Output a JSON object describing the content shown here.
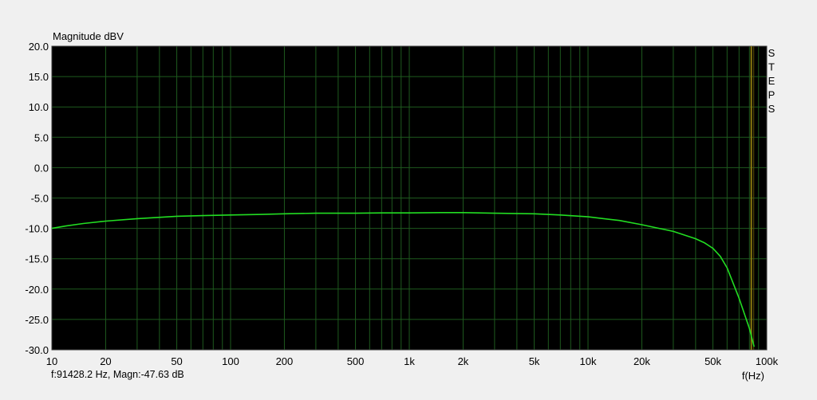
{
  "chart_data": {
    "type": "line",
    "title": "",
    "ylabel": "Magnitude dBV",
    "xlabel": "f(Hz)",
    "x_scale": "log",
    "xlim": [
      10,
      100000
    ],
    "ylim": [
      -30,
      20
    ],
    "grid": true,
    "y_ticks": [
      "20.0",
      "15.0",
      "10.0",
      "5.0",
      "0.0",
      "-5.0",
      "-10.0",
      "-15.0",
      "-20.0",
      "-25.0",
      "-30.0"
    ],
    "y_tick_values": [
      20,
      15,
      10,
      5,
      0,
      -5,
      -10,
      -15,
      -20,
      -25,
      -30
    ],
    "x_ticks": [
      "10",
      "20",
      "50",
      "100",
      "200",
      "500",
      "1k",
      "2k",
      "5k",
      "10k",
      "20k",
      "50k",
      "100k"
    ],
    "x_tick_values": [
      10,
      20,
      50,
      100,
      200,
      500,
      1000,
      2000,
      5000,
      10000,
      20000,
      50000,
      100000
    ],
    "marker_label": "STEPS",
    "marker_frequency": 82000,
    "series": [
      {
        "color": "#22dd22",
        "x": [
          10,
          12,
          15,
          20,
          30,
          50,
          70,
          100,
          150,
          200,
          300,
          500,
          700,
          1000,
          1500,
          2000,
          3000,
          5000,
          7000,
          10000,
          15000,
          20000,
          25000,
          30000,
          40000,
          45000,
          50000,
          55000,
          60000,
          70000,
          80000,
          85000
        ],
        "y": [
          -10.0,
          -9.6,
          -9.2,
          -8.8,
          -8.4,
          -8.0,
          -7.9,
          -7.8,
          -7.7,
          -7.6,
          -7.5,
          -7.5,
          -7.45,
          -7.45,
          -7.4,
          -7.4,
          -7.5,
          -7.6,
          -7.8,
          -8.1,
          -8.7,
          -9.4,
          -10.0,
          -10.5,
          -11.7,
          -12.4,
          -13.3,
          -14.6,
          -16.5,
          -21.5,
          -26.5,
          -29.5
        ]
      }
    ]
  },
  "status": {
    "readout": "f:91428.2 Hz, Magn:-47.63 dB"
  }
}
